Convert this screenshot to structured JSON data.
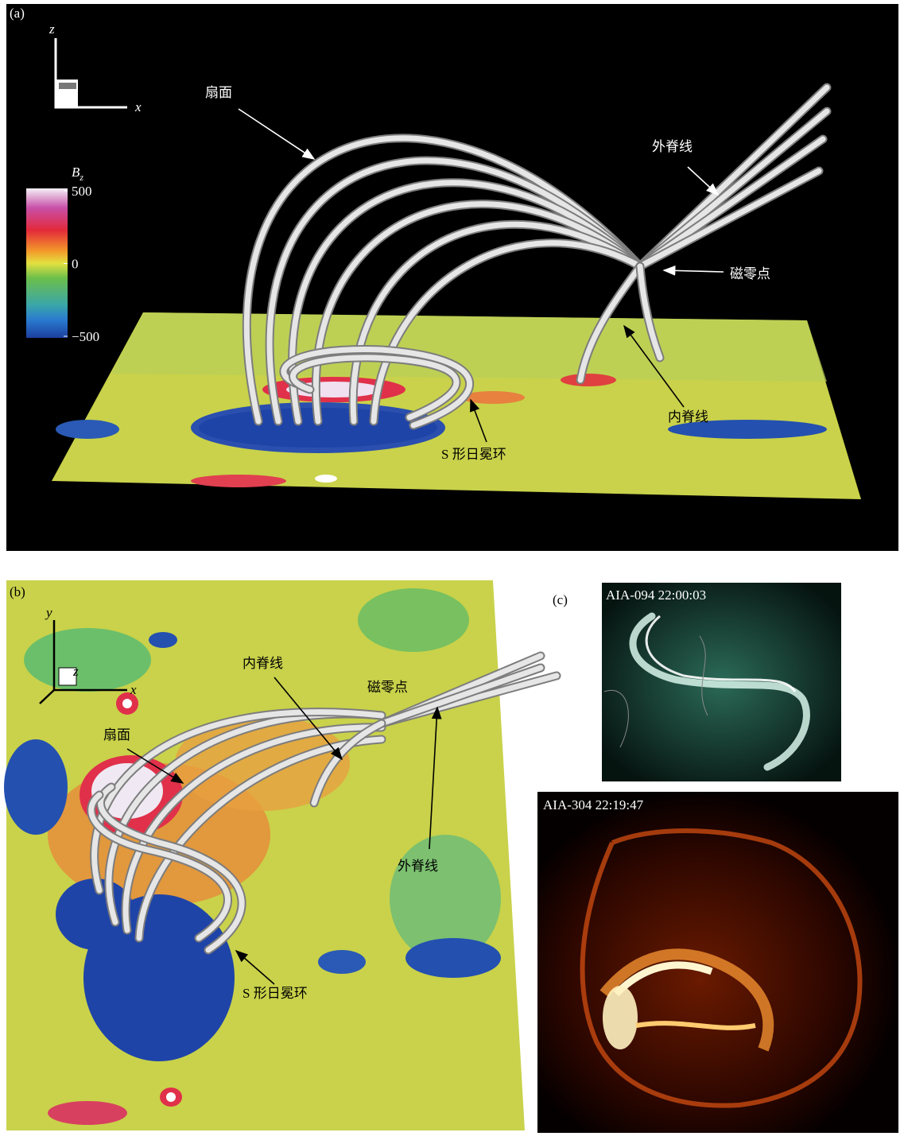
{
  "panel_a": {
    "label": "(a)",
    "axis_z": "z",
    "axis_x": "x",
    "colorbar": {
      "label": "B",
      "label_sub": "z",
      "ticks": [
        500,
        0,
        {
          "value": -500,
          "label": "−500"
        }
      ],
      "lim": [
        -500,
        500
      ]
    },
    "annotations": [
      "扇面",
      "外脊线",
      "磁零点",
      "内脊线",
      "S 形日冕环"
    ]
  },
  "panel_b": {
    "label": "(b)",
    "axis_y": "y",
    "axis_x": "x",
    "axis_z": "z",
    "annotations": [
      "内脊线",
      "磁零点",
      "扇面",
      "外脊线",
      "S 形日冕环"
    ]
  },
  "panel_c": {
    "label": "(c)",
    "image_top": "AIA-094 22:00:03",
    "image_bottom": "AIA-304 22:19:47"
  }
}
